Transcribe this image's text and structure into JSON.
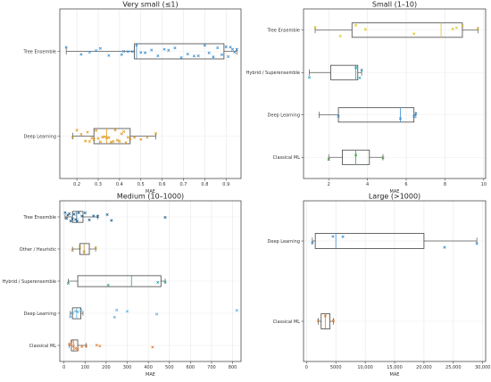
{
  "chart_data": [
    {
      "type": "box",
      "title": "Very small (≤1)",
      "xlabel": "MAE",
      "xlim": [
        0.12,
        0.97
      ],
      "xticks": [
        0.2,
        0.3,
        0.4,
        0.5,
        0.6,
        0.7,
        0.8,
        0.9
      ],
      "xtick_labels": [
        "0.2",
        "0.3",
        "0.4",
        "0.5",
        "0.6",
        "0.7",
        "0.8",
        "0.9"
      ],
      "categories": [
        "Tree Ensemble",
        "Deep Learning"
      ],
      "boxes": [
        {
          "category": "Tree Ensemble",
          "min": 0.15,
          "q1": 0.47,
          "median": 0.48,
          "q3": 0.89,
          "max": 0.95,
          "color": "#3a8fd0",
          "points": [
            0.15,
            0.22,
            0.26,
            0.29,
            0.31,
            0.35,
            0.41,
            0.42,
            0.44,
            0.46,
            0.48,
            0.5,
            0.52,
            0.55,
            0.58,
            0.61,
            0.63,
            0.66,
            0.69,
            0.72,
            0.75,
            0.77,
            0.8,
            0.82,
            0.84,
            0.86,
            0.88,
            0.9,
            0.91,
            0.92,
            0.93,
            0.94,
            0.95
          ]
        },
        {
          "category": "Deep Learning",
          "min": 0.18,
          "q1": 0.28,
          "median": 0.34,
          "q3": 0.45,
          "max": 0.57,
          "color": "#e09a1c",
          "points": [
            0.18,
            0.2,
            0.22,
            0.24,
            0.25,
            0.26,
            0.27,
            0.28,
            0.29,
            0.3,
            0.31,
            0.32,
            0.33,
            0.34,
            0.35,
            0.36,
            0.37,
            0.38,
            0.39,
            0.4,
            0.41,
            0.42,
            0.43,
            0.44,
            0.45,
            0.47,
            0.5,
            0.53,
            0.57
          ]
        }
      ]
    },
    {
      "type": "box",
      "title": "Small (1–10)",
      "xlabel": "MAE",
      "xlim": [
        0.7,
        10.1
      ],
      "xticks": [
        2,
        4,
        6,
        8,
        10
      ],
      "xtick_labels": [
        "2",
        "4",
        "6",
        "8",
        "10"
      ],
      "categories": [
        "Tree Ensemble",
        "Hybrid / Superensemble",
        "Deep Learning",
        "Classical ML"
      ],
      "boxes": [
        {
          "category": "Tree Ensemble",
          "min": 1.3,
          "q1": 3.2,
          "median": 7.8,
          "q3": 8.9,
          "max": 9.7,
          "color": "#d8c424",
          "points": [
            1.3,
            2.6,
            3.4,
            3.9,
            6.4,
            8.4,
            8.6,
            8.9,
            9.7
          ]
        },
        {
          "category": "Hybrid / Superensemble",
          "min": 1.0,
          "q1": 2.1,
          "median": 3.4,
          "q3": 3.5,
          "max": 3.7,
          "color": "#2ca2b8",
          "points": [
            1.0,
            3.4,
            3.6,
            3.7
          ]
        },
        {
          "category": "Deep Learning",
          "min": 1.5,
          "q1": 2.5,
          "median": 5.7,
          "q3": 6.4,
          "max": 6.5,
          "color": "#3a8fd0",
          "points": [
            2.5,
            5.7,
            6.4,
            6.5
          ]
        },
        {
          "category": "Classical ML",
          "min": 2.0,
          "q1": 2.7,
          "median": 3.4,
          "q3": 4.1,
          "max": 4.8,
          "color": "#3fa142",
          "points": [
            2.0,
            3.4,
            4.8
          ]
        }
      ]
    },
    {
      "type": "box",
      "title": "Medium (10–1000)",
      "xlabel": "MAE",
      "xlim": [
        -20,
        840
      ],
      "xticks": [
        0,
        100,
        200,
        300,
        400,
        500,
        600,
        700,
        800
      ],
      "xtick_labels": [
        "0",
        "100",
        "200",
        "300",
        "400",
        "500",
        "600",
        "700",
        "800"
      ],
      "categories": [
        "Tree Ensemble",
        "Other / Heuristic",
        "Hybrid / Superensemble",
        "Deep Learning",
        "Classical ML"
      ],
      "boxes": [
        {
          "category": "Tree Ensemble",
          "min": 5,
          "q1": 40,
          "median": 60,
          "q3": 90,
          "max": 160,
          "color": "#1f5f8b",
          "points": [
            5,
            12,
            18,
            25,
            32,
            40,
            48,
            55,
            62,
            70,
            85,
            100,
            120,
            140,
            160,
            205,
            225,
            480
          ]
        },
        {
          "category": "Other / Heuristic",
          "min": 40,
          "q1": 75,
          "median": 95,
          "q3": 120,
          "max": 150,
          "color": "#c89a3a",
          "points": [
            40,
            75,
            95,
            150
          ]
        },
        {
          "category": "Hybrid / Superensemble",
          "min": 20,
          "q1": 65,
          "median": 320,
          "q3": 460,
          "max": 480,
          "color": "#2aa198",
          "points": [
            20,
            210,
            445,
            480
          ]
        },
        {
          "category": "Deep Learning",
          "min": 30,
          "q1": 40,
          "median": 60,
          "q3": 80,
          "max": 90,
          "color": "#5aaee0",
          "points": [
            30,
            40,
            55,
            65,
            80,
            240,
            250,
            300,
            440,
            820
          ]
        },
        {
          "category": "Classical ML",
          "min": 25,
          "q1": 35,
          "median": 45,
          "q3": 65,
          "max": 105,
          "color": "#e07b39",
          "points": [
            25,
            35,
            45,
            55,
            65,
            85,
            105,
            155,
            170,
            420
          ]
        }
      ]
    },
    {
      "type": "box",
      "title": "Large (>1000)",
      "xlabel": "MAE",
      "xlim": [
        -500,
        30500
      ],
      "xticks": [
        0,
        5000,
        10000,
        15000,
        20000,
        25000,
        30000
      ],
      "xtick_labels": [
        "0",
        "5000",
        "10,000",
        "15,000",
        "20,000",
        "25,000",
        "30,000"
      ],
      "categories": [
        "Deep Learning",
        "Classical ML"
      ],
      "boxes": [
        {
          "category": "Deep Learning",
          "min": 1000,
          "q1": 1500,
          "median": 5000,
          "q3": 20000,
          "max": 29000,
          "color": "#3a8fd0",
          "points": [
            1000,
            4500,
            6200,
            23500,
            29000
          ]
        },
        {
          "category": "Classical ML",
          "min": 2000,
          "q1": 2500,
          "median": 3200,
          "q3": 4000,
          "max": 4600,
          "color": "#d87a2a",
          "points": [
            2000,
            3200,
            4600
          ]
        }
      ]
    }
  ]
}
